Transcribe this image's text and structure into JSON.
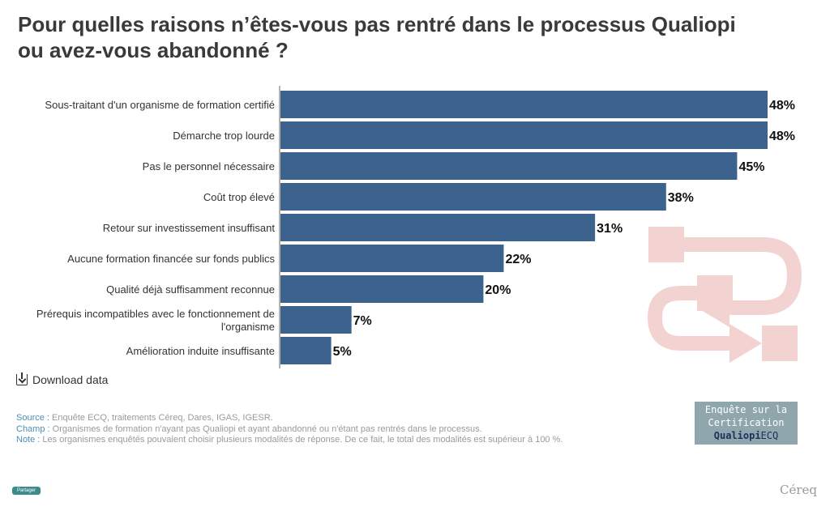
{
  "title": "Pour quelles raisons n’êtes-vous pas rentré dans le processus Qualiopi ou avez-vous abandonné ?",
  "download_label": "Download data",
  "notes": {
    "source_label": "Source :",
    "source_text": " Enquête ECQ, traitements Céreq, Dares, IGAS, IGESR.",
    "champ_label": "Champ :",
    "champ_text": " Organismes de formation n'ayant pas Qualiopi et ayant abandonné ou n'étant pas rentrés dans le processus.",
    "note_label": "Note :",
    "note_text": " Les organismes enquêtés pouvaient choisir plusieurs modalités de réponse. De ce fait, le total des modalités est supérieur à 100 %."
  },
  "badge": {
    "line1": "Enquête sur la",
    "line2": "Certification",
    "qualiopi": "Qualiopi",
    "ecq": "ECQ"
  },
  "share_label": "Partager",
  "brand": "Céreq",
  "colors": {
    "bar": "#3c628e",
    "decor": "#f3d2d2",
    "accent": "#4a8fb5"
  },
  "chart_data": {
    "type": "bar",
    "orientation": "horizontal",
    "categories": [
      "Sous-traitant d'un organisme de formation certifié",
      "Démarche trop lourde",
      "Pas le personnel nécessaire",
      "Coût trop élevé",
      "Retour sur investissement insuffisant",
      "Aucune formation financée sur fonds publics",
      "Qualité déjà suffisamment reconnue",
      "Prérequis incompatibles avec le fonctionnement de l'organisme",
      "Amélioration induite insuffisante"
    ],
    "category_lines": [
      [
        "Sous-traitant d'un organisme de formation certifié"
      ],
      [
        "Démarche trop lourde"
      ],
      [
        "Pas le personnel nécessaire"
      ],
      [
        "Coût trop élevé"
      ],
      [
        "Retour sur investissement insuffisant"
      ],
      [
        "Aucune formation financée sur fonds publics"
      ],
      [
        "Qualité déjà suffisamment reconnue"
      ],
      [
        "Prérequis incompatibles avec le fonctionnement de",
        "l'organisme"
      ],
      [
        "Amélioration induite insuffisante"
      ]
    ],
    "values": [
      48,
      48,
      45,
      38,
      31,
      22,
      20,
      7,
      5
    ],
    "value_labels": [
      "48%",
      "48%",
      "45%",
      "38%",
      "31%",
      "22%",
      "20%",
      "7%",
      "5%"
    ],
    "unit": "%",
    "xlim": [
      0,
      48
    ],
    "grid": false,
    "legend": "none"
  }
}
